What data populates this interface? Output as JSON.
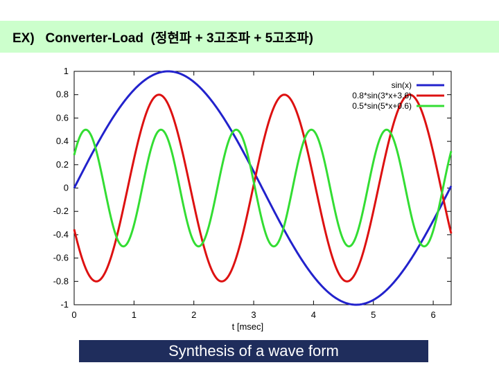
{
  "header": {
    "title": "EX)   Converter-Load  (정현파 + 3고조파 + 5고조파)"
  },
  "caption": {
    "text": "Synthesis of a wave form"
  },
  "chart_data": {
    "type": "line",
    "title": "",
    "xlabel": "t [msec]",
    "ylabel": "",
    "xlim": [
      0,
      6.3
    ],
    "ylim": [
      -1,
      1
    ],
    "xticks": [
      "0",
      "1",
      "2",
      "3",
      "4",
      "5",
      "6"
    ],
    "yticks": [
      "1",
      "0.8",
      "0.6",
      "0.4",
      "0.2",
      "0",
      "-0.2",
      "-0.4",
      "-0.6",
      "-0.8",
      "-1"
    ],
    "legend_position": "top-right",
    "grid": false,
    "series": [
      {
        "name": "sin(x)",
        "color": "#2222cc",
        "amplitude": 1.0,
        "frequency": 1,
        "phase": 0,
        "x": [
          0,
          0.79,
          1.57,
          2.36,
          3.14,
          3.93,
          4.71,
          5.5,
          6.28
        ],
        "y": [
          0,
          0.71,
          1,
          0.71,
          0,
          -0.71,
          -1,
          -0.71,
          0
        ]
      },
      {
        "name": "0.8*sin(3*x+3.6)",
        "color": "#dd1111",
        "amplitude": 0.8,
        "frequency": 3,
        "phase": 3.6,
        "x": [
          0,
          0.37,
          0.9,
          1.42,
          1.95,
          2.47,
          3.0,
          3.52,
          4.04,
          4.57,
          5.09,
          5.62,
          6.14,
          6.28
        ],
        "y": [
          -0.35,
          -0.8,
          0,
          0.8,
          0,
          -0.8,
          0,
          0.8,
          0,
          -0.8,
          0,
          0.8,
          0,
          -0.35
        ]
      },
      {
        "name": "0.5*sin(5*x+0.6)",
        "color": "#33dd33",
        "amplitude": 0.5,
        "frequency": 5,
        "phase": 0.6,
        "x": [
          0,
          0.19,
          0.51,
          0.82,
          1.13,
          1.45,
          1.76,
          2.07,
          2.39,
          2.7,
          3.02,
          3.33,
          3.64,
          3.96,
          4.27,
          4.58,
          4.9,
          5.21,
          5.52,
          5.84,
          6.15,
          6.28
        ],
        "y": [
          0.28,
          0.5,
          0,
          -0.5,
          0,
          0.5,
          0,
          -0.5,
          0,
          0.5,
          0,
          -0.5,
          0,
          0.5,
          0,
          -0.5,
          0,
          0.5,
          0,
          -0.5,
          0,
          0.28
        ]
      }
    ]
  }
}
